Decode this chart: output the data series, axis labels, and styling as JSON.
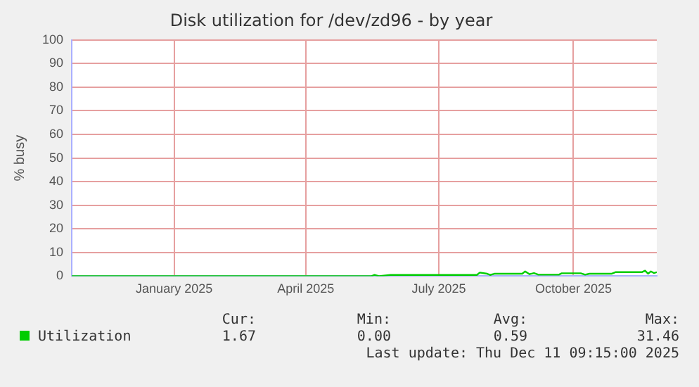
{
  "chart_data": {
    "type": "line",
    "title": "Disk utilization for /dev/zd96 - by year",
    "ylabel": "% busy",
    "x": [
      "2024-11-06",
      "2025-05-30",
      "2025-06-01",
      "2025-06-04",
      "2025-06-12",
      "2025-08-10",
      "2025-08-12",
      "2025-08-17",
      "2025-08-19",
      "2025-08-22",
      "2025-09-10",
      "2025-09-12",
      "2025-09-15",
      "2025-09-18",
      "2025-09-21",
      "2025-10-05",
      "2025-10-07",
      "2025-10-20",
      "2025-10-23",
      "2025-10-26",
      "2025-11-10",
      "2025-11-13",
      "2025-12-01",
      "2025-12-03",
      "2025-12-05",
      "2025-12-07",
      "2025-12-09",
      "2025-12-11"
    ],
    "series": [
      {
        "name": "Utilization",
        "color": "#00cc00",
        "values": [
          0,
          0,
          0.5,
          0,
          0.5,
          0.5,
          1.5,
          1,
          0.5,
          1,
          1,
          2,
          0.8,
          1.3,
          0.6,
          0.6,
          1.2,
          1.2,
          0.6,
          1,
          1,
          1.7,
          1.7,
          2.3,
          1,
          2,
          1.3,
          1.67
        ]
      }
    ],
    "xlim": [
      "2024-11-06",
      "2025-12-11"
    ],
    "xticks": [
      {
        "value": "2025-01-15",
        "label": "January 2025"
      },
      {
        "value": "2025-04-15",
        "label": "April 2025"
      },
      {
        "value": "2025-07-15",
        "label": "July 2025"
      },
      {
        "value": "2025-10-15",
        "label": "October 2025"
      }
    ],
    "ylim": [
      0,
      100
    ],
    "yticks": [
      0,
      10,
      20,
      30,
      40,
      50,
      60,
      70,
      80,
      90,
      100
    ],
    "grid": true,
    "legend": "bottom left",
    "marker": "none",
    "annotations": [
      "Cur:",
      "Min:",
      "Avg:",
      "Max:",
      "1.67",
      "0.00",
      "0.59",
      "31.46",
      "Last update: Thu Dec 11 09:15:00 2025"
    ]
  }
}
